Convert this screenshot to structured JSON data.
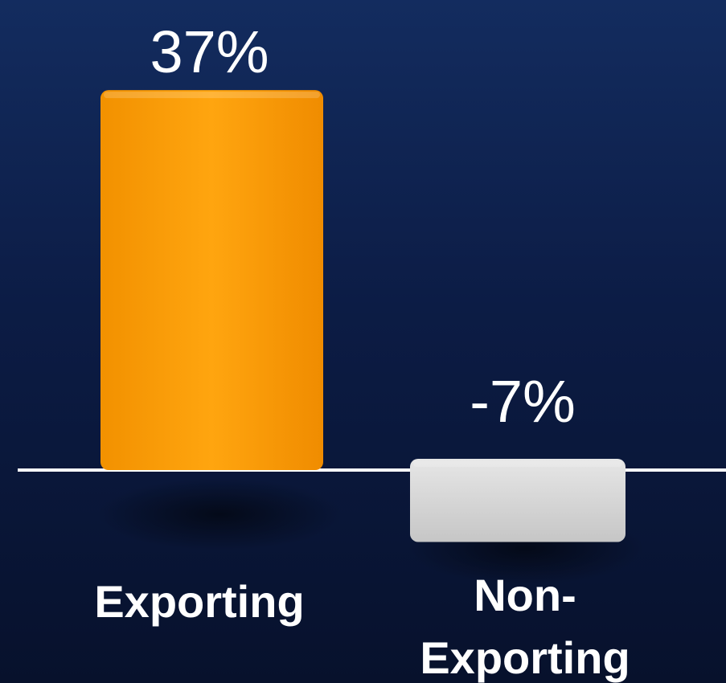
{
  "chart_data": {
    "type": "bar",
    "categories": [
      "Exporting",
      "Non-Exporting"
    ],
    "category_lines": [
      [
        "Exporting"
      ],
      [
        "Non-",
        "Exporting"
      ]
    ],
    "values": [
      37,
      -7
    ],
    "value_labels": [
      "37%",
      "-7%"
    ],
    "title": "",
    "xlabel": "",
    "ylabel": "",
    "ylim": [
      -10,
      40
    ],
    "grid": false,
    "legend": "none",
    "colors": {
      "Exporting": "#ffa00a",
      "Non-Exporting": "#d8d8d8",
      "baseline": "#ffffff",
      "background_top": "#132c5f",
      "background_bottom": "#07112c"
    }
  }
}
